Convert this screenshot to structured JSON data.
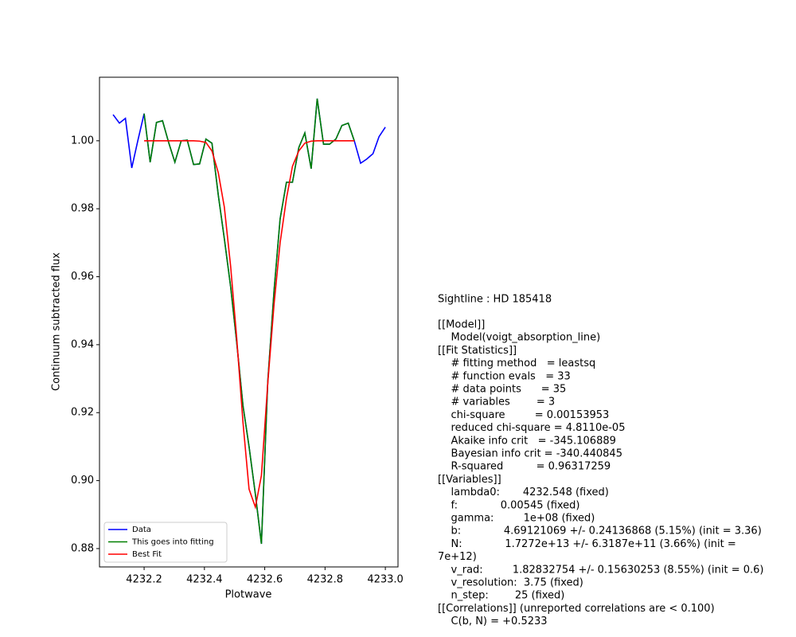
{
  "chart_data": {
    "type": "line",
    "xlabel": "Plotwave",
    "ylabel": "Continuum subtracted flux",
    "xlim": [
      4232.052,
      4233.042
    ],
    "ylim": [
      0.8746,
      1.0187
    ],
    "xticks": [
      4232.2,
      4232.4,
      4232.6,
      4232.8,
      {
        "value": 4233,
        "label": "4233.0"
      }
    ],
    "yticks": [
      0.88,
      {
        "value": 0.9,
        "label": "0.90"
      },
      0.92,
      0.94,
      0.96,
      0.98,
      {
        "value": 1,
        "label": "1.00"
      }
    ],
    "grid": false,
    "legend": "lower left",
    "series": [
      {
        "name": "Data",
        "color": "#0000ff",
        "x": [
          4232.097,
          4232.118,
          4232.138,
          4232.159,
          4232.179,
          4232.2,
          4232.22,
          4232.241,
          4232.261,
          4232.282,
          4232.302,
          4232.323,
          4232.343,
          4232.364,
          4232.384,
          4232.405,
          4232.425,
          4232.446,
          4232.466,
          4232.487,
          4232.507,
          4232.528,
          4232.548,
          4232.569,
          4232.589,
          4232.61,
          4232.631,
          4232.651,
          4232.672,
          4232.692,
          4232.713,
          4232.733,
          4232.754,
          4232.774,
          4232.795,
          4232.815,
          4232.836,
          4232.856,
          4232.877,
          4232.897,
          4232.918,
          4232.938,
          4232.959,
          4232.979,
          4233.0
        ],
        "values": [
          1.0077,
          1.0052,
          1.0066,
          0.992,
          1.0,
          1.008,
          0.9937,
          1.0054,
          1.0059,
          0.9993,
          0.9937,
          1.0,
          1.0002,
          0.993,
          0.9932,
          1.0005,
          0.9993,
          0.984,
          0.9712,
          0.957,
          0.9407,
          0.922,
          0.91,
          0.896,
          0.8814,
          0.929,
          0.956,
          0.977,
          0.9878,
          0.9878,
          0.998,
          1.0023,
          0.9918,
          1.0124,
          0.999,
          0.999,
          1.0005,
          1.0045,
          1.0052,
          1.0,
          0.9934,
          0.9946,
          0.9962,
          1.0012,
          1.004
        ]
      },
      {
        "name": "This goes into fitting",
        "color": "#008000",
        "x": [
          4232.2,
          4232.22,
          4232.241,
          4232.261,
          4232.282,
          4232.302,
          4232.323,
          4232.343,
          4232.364,
          4232.384,
          4232.405,
          4232.425,
          4232.446,
          4232.466,
          4232.487,
          4232.507,
          4232.528,
          4232.548,
          4232.569,
          4232.589,
          4232.61,
          4232.631,
          4232.651,
          4232.672,
          4232.692,
          4232.713,
          4232.733,
          4232.754,
          4232.774,
          4232.795,
          4232.815,
          4232.836,
          4232.856,
          4232.877,
          4232.897
        ],
        "values": [
          1.008,
          0.9937,
          1.0054,
          1.0059,
          0.9993,
          0.9937,
          1.0,
          1.0002,
          0.993,
          0.9932,
          1.0005,
          0.9993,
          0.984,
          0.9712,
          0.957,
          0.9407,
          0.922,
          0.91,
          0.896,
          0.8814,
          0.929,
          0.956,
          0.977,
          0.9878,
          0.9878,
          0.998,
          1.0023,
          0.9918,
          1.0124,
          0.999,
          0.999,
          1.0005,
          1.0045,
          1.0052,
          1.0
        ]
      },
      {
        "name": "Best Fit",
        "color": "#ff0000",
        "x": [
          4232.2,
          4232.22,
          4232.241,
          4232.261,
          4232.282,
          4232.302,
          4232.323,
          4232.343,
          4232.364,
          4232.384,
          4232.405,
          4232.425,
          4232.446,
          4232.466,
          4232.487,
          4232.507,
          4232.528,
          4232.548,
          4232.569,
          4232.589,
          4232.61,
          4232.631,
          4232.651,
          4232.672,
          4232.692,
          4232.713,
          4232.733,
          4232.754,
          4232.774,
          4232.795,
          4232.815,
          4232.836,
          4232.856,
          4232.877,
          4232.897
        ],
        "values": [
          1.0,
          1.0,
          1.0,
          1.0,
          1.0,
          1.0,
          1.0,
          1.0,
          1.0,
          0.9999,
          0.9995,
          0.997,
          0.9906,
          0.9805,
          0.963,
          0.942,
          0.917,
          0.8975,
          0.8922,
          0.9015,
          0.9285,
          0.952,
          0.97,
          0.983,
          0.9925,
          0.997,
          0.9993,
          0.9999,
          1.0,
          1.0,
          1.0,
          1.0,
          1.0,
          1.0,
          1.0
        ]
      }
    ]
  },
  "fit_report": {
    "sightline": "Sightline : HD 185418",
    "lines": [
      "[[Model]]",
      "    Model(voigt_absorption_line)",
      "[[Fit Statistics]]",
      "    # fitting method   = leastsq",
      "    # function evals   = 33",
      "    # data points      = 35",
      "    # variables        = 3",
      "    chi-square         = 0.00153953",
      "    reduced chi-square = 4.8110e-05",
      "    Akaike info crit   = -345.106889",
      "    Bayesian info crit = -340.440845",
      "    R-squared          = 0.96317259",
      "[[Variables]]",
      "    lambda0:       4232.548 (fixed)",
      "    f:             0.00545 (fixed)",
      "    gamma:         1e+08 (fixed)",
      "    b:             4.69121069 +/- 0.24136868 (5.15%) (init = 3.36)",
      "    N:             1.7272e+13 +/- 6.3187e+11 (3.66%) (init =",
      "7e+12)",
      "    v_rad:         1.82832754 +/- 0.15630253 (8.55%) (init = 0.6)",
      "    v_resolution:  3.75 (fixed)",
      "    n_step:        25 (fixed)",
      "[[Correlations]] (unreported correlations are < 0.100)",
      "    C(b, N) = +0.5233"
    ]
  }
}
